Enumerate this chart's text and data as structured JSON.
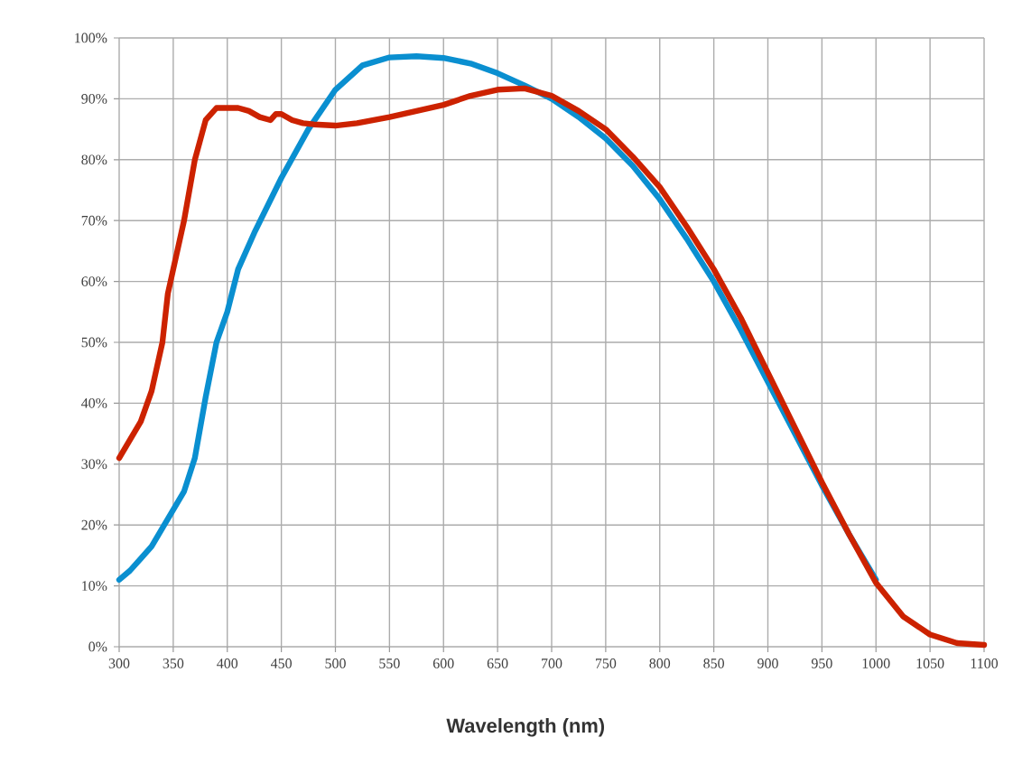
{
  "chart_data": {
    "type": "line",
    "xlabel": "Wavelength (nm)",
    "xlim": [
      300,
      1100
    ],
    "xticks": [
      300,
      350,
      400,
      450,
      500,
      550,
      600,
      650,
      700,
      750,
      800,
      850,
      900,
      950,
      1000,
      1050,
      1100
    ],
    "ylim": [
      0,
      100
    ],
    "yticks": [
      {
        "value": 0,
        "label": "0%"
      },
      {
        "value": 10,
        "label": "10%"
      },
      {
        "value": 20,
        "label": "20%"
      },
      {
        "value": 30,
        "label": "30%"
      },
      {
        "value": 40,
        "label": "40%"
      },
      {
        "value": 50,
        "label": "50%"
      },
      {
        "value": 60,
        "label": "60%"
      },
      {
        "value": 70,
        "label": "70%"
      },
      {
        "value": 80,
        "label": "80%"
      },
      {
        "value": 90,
        "label": "90%"
      },
      {
        "value": 100,
        "label": "100%"
      }
    ],
    "grid": true,
    "marker": "none",
    "line_style": "solid",
    "series": [
      {
        "color": "#0a8fd0",
        "x": [
          300,
          310,
          320,
          330,
          340,
          350,
          360,
          370,
          380,
          390,
          400,
          410,
          425,
          450,
          475,
          500,
          525,
          550,
          575,
          600,
          625,
          650,
          675,
          700,
          725,
          750,
          775,
          800,
          825,
          850,
          875,
          900,
          925,
          950,
          975,
          1000
        ],
        "values": [
          11,
          12.5,
          14.5,
          16.5,
          19.5,
          22.5,
          25.5,
          31,
          41,
          50,
          55,
          62,
          68,
          77,
          85,
          91.5,
          95.5,
          96.8,
          97,
          96.7,
          95.8,
          94.2,
          92.2,
          90,
          87,
          83.5,
          79,
          73.5,
          67,
          60,
          52,
          43.5,
          35,
          26.5,
          18.5,
          11
        ]
      },
      {
        "color": "#cc2200",
        "x": [
          300,
          310,
          320,
          330,
          340,
          345,
          350,
          360,
          370,
          380,
          390,
          400,
          410,
          420,
          430,
          440,
          445,
          450,
          460,
          470,
          480,
          500,
          520,
          550,
          600,
          625,
          650,
          675,
          700,
          725,
          750,
          775,
          800,
          825,
          850,
          875,
          900,
          925,
          950,
          975,
          1000,
          1025,
          1050,
          1075,
          1100
        ],
        "values": [
          31,
          34,
          37,
          42,
          50,
          58,
          62,
          70,
          80,
          86.5,
          88.5,
          88.5,
          88.5,
          88,
          87,
          86.5,
          87.5,
          87.5,
          86.5,
          86,
          85.8,
          85.6,
          86,
          87,
          89,
          90.5,
          91.5,
          91.7,
          90.5,
          88,
          85,
          80.5,
          75.5,
          69,
          62,
          54,
          45,
          36,
          27,
          18.5,
          10.5,
          5,
          2,
          0.6,
          0.3
        ]
      }
    ]
  }
}
